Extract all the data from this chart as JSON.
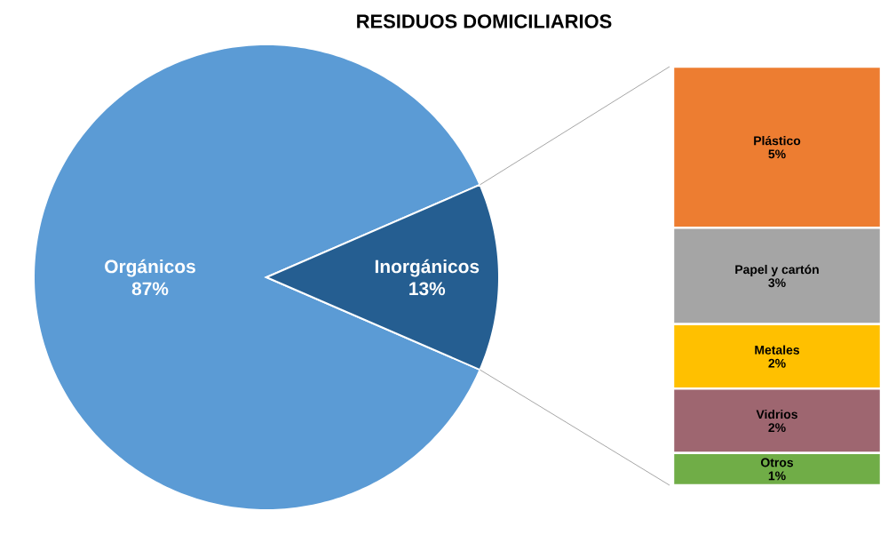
{
  "chart_data": [
    {
      "type": "pie",
      "title": "RESIDUOS DOMICILIARIOS",
      "categories": [
        "Orgánicos",
        "Inorgánicos"
      ],
      "values": [
        87,
        13
      ],
      "colors": [
        "#5b9bd5",
        "#255e91"
      ],
      "value_labels": [
        "87%",
        "13%"
      ]
    },
    {
      "type": "bar",
      "stacked": true,
      "categories": [
        null
      ],
      "series": [
        {
          "name": "Otros",
          "color": "#70ad47",
          "values": [
            1
          ],
          "value_labels": [
            "1%"
          ]
        },
        {
          "name": "Vidrios",
          "color": "#9e6670",
          "values": [
            2
          ],
          "value_labels": [
            "2%"
          ]
        },
        {
          "name": "Metales",
          "color": "#ffc000",
          "values": [
            2
          ],
          "value_labels": [
            "2%"
          ]
        },
        {
          "name": "Papel y cartón",
          "color": "#a5a5a5",
          "values": [
            3
          ],
          "value_labels": [
            "3%"
          ]
        },
        {
          "name": "Plástico",
          "color": "#ed7d31",
          "values": [
            5
          ],
          "value_labels": [
            "5%"
          ]
        }
      ]
    }
  ]
}
